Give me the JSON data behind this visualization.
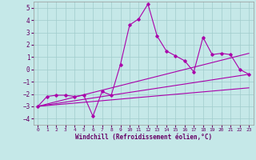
{
  "xlabel": "Windchill (Refroidissement éolien,°C)",
  "xlim": [
    -0.5,
    23.5
  ],
  "ylim": [
    -4.5,
    5.5
  ],
  "xticks": [
    0,
    1,
    2,
    3,
    4,
    5,
    6,
    7,
    8,
    9,
    10,
    11,
    12,
    13,
    14,
    15,
    16,
    17,
    18,
    19,
    20,
    21,
    22,
    23
  ],
  "yticks": [
    -4,
    -3,
    -2,
    -1,
    0,
    1,
    2,
    3,
    4,
    5
  ],
  "background_color": "#c5e8e8",
  "grid_color": "#a0cccc",
  "line_color": "#aa00aa",
  "main_x": [
    0,
    1,
    2,
    3,
    4,
    5,
    6,
    7,
    8,
    9,
    10,
    11,
    12,
    13,
    14,
    15,
    16,
    17,
    18,
    19,
    20,
    21,
    22,
    23
  ],
  "main_y": [
    -3.0,
    -2.2,
    -2.1,
    -2.1,
    -2.2,
    -2.1,
    -3.8,
    -1.8,
    -2.1,
    0.4,
    3.6,
    4.1,
    5.3,
    2.7,
    1.5,
    1.1,
    0.7,
    -0.2,
    2.6,
    1.2,
    1.3,
    1.2,
    0.0,
    -0.4
  ],
  "trend1": {
    "x": [
      0,
      23
    ],
    "y": [
      -3.0,
      1.3
    ]
  },
  "trend2": {
    "x": [
      0,
      23
    ],
    "y": [
      -3.0,
      -0.4
    ]
  },
  "trend3": {
    "x": [
      0,
      23
    ],
    "y": [
      -3.0,
      -1.5
    ]
  }
}
